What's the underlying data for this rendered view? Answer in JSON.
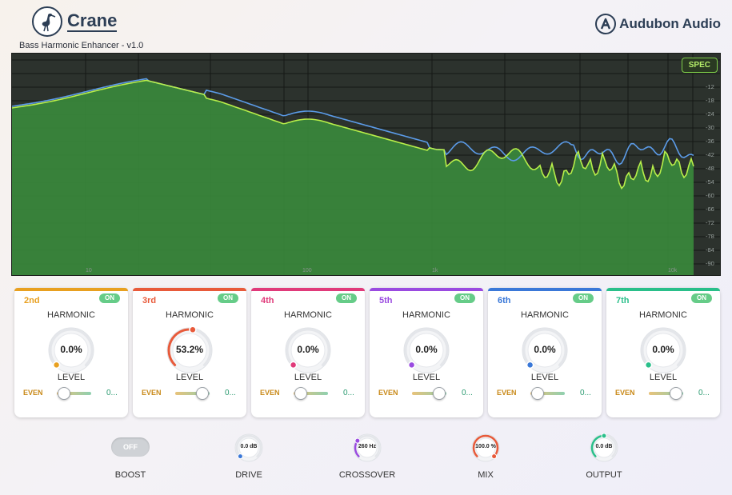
{
  "header": {
    "logo_icon": "crane-bird-icon",
    "app_name": "Crane",
    "subtitle": "Bass Harmonic Enhancer  -  v1.0",
    "brand_icon": "audubon-a-icon",
    "brand_name": "Audubon Audio"
  },
  "spectrum": {
    "toggle_label": "SPEC",
    "db_ticks": [
      "-12",
      "-18",
      "-24",
      "-30",
      "-36",
      "-42",
      "-48",
      "-54",
      "-60",
      "-66",
      "-72",
      "-78",
      "-84",
      "-90"
    ],
    "freq_labels": [
      "10",
      "100",
      "1k",
      "10k"
    ],
    "colors": {
      "input": "#5b9be8",
      "output": "#b8ef4a",
      "fill": "#3a8a3c"
    }
  },
  "harmonics": [
    {
      "order": "2nd",
      "harmonic_label": "HARMONIC",
      "level_label": "LEVEL",
      "on_label": "ON",
      "value": "0.0%",
      "even_label": "EVEN",
      "odd_value": "0...",
      "color": "#e8a020",
      "slider": 0.2,
      "level": 0.0
    },
    {
      "order": "3rd",
      "harmonic_label": "HARMONIC",
      "level_label": "LEVEL",
      "on_label": "ON",
      "value": "53.2%",
      "even_label": "EVEN",
      "odd_value": "0...",
      "color": "#e85a3a",
      "slider": 0.8,
      "level": 0.532
    },
    {
      "order": "4th",
      "harmonic_label": "HARMONIC",
      "level_label": "LEVEL",
      "on_label": "ON",
      "value": "0.0%",
      "even_label": "EVEN",
      "odd_value": "0...",
      "color": "#e03a7a",
      "slider": 0.2,
      "level": 0.0
    },
    {
      "order": "5th",
      "harmonic_label": "HARMONIC",
      "level_label": "LEVEL",
      "on_label": "ON",
      "value": "0.0%",
      "even_label": "EVEN",
      "odd_value": "0...",
      "color": "#9a4ae0",
      "slider": 0.8,
      "level": 0.0
    },
    {
      "order": "6th",
      "harmonic_label": "HARMONIC",
      "level_label": "LEVEL",
      "on_label": "ON",
      "value": "0.0%",
      "even_label": "EVEN",
      "odd_value": "0...",
      "color": "#3a78d8",
      "slider": 0.2,
      "level": 0.0
    },
    {
      "order": "7th",
      "harmonic_label": "HARMONIC",
      "level_label": "LEVEL",
      "on_label": "ON",
      "value": "0.0%",
      "even_label": "EVEN",
      "odd_value": "0...",
      "color": "#2abf8a",
      "slider": 0.8,
      "level": 0.0
    }
  ],
  "controls": {
    "boost": {
      "label": "BOOST",
      "state": "OFF"
    },
    "drive": {
      "label": "DRIVE",
      "value": "0.0 dB",
      "color": "#3a78d8",
      "level": 0.0
    },
    "crossover": {
      "label": "CROSSOVER",
      "value": "260 Hz",
      "color": "#9a4ae0",
      "level": 0.3
    },
    "mix": {
      "label": "MIX",
      "value": "100.0 %",
      "color": "#e85a3a",
      "level": 1.0
    },
    "output": {
      "label": "OUTPUT",
      "value": "0.0 dB",
      "color": "#2abf8a",
      "level": 0.5
    }
  }
}
